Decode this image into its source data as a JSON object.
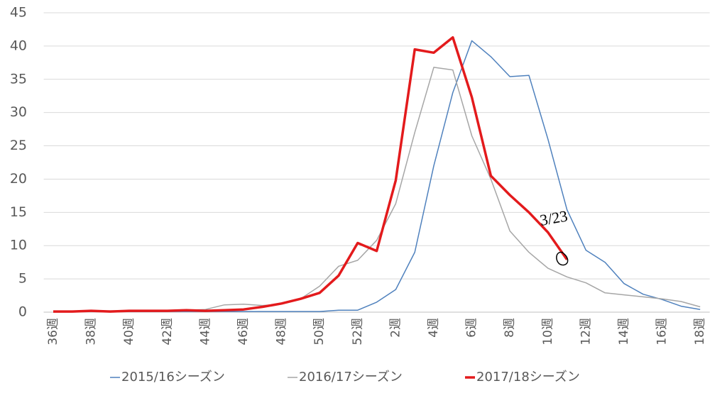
{
  "chart_data": {
    "type": "line",
    "categories": [
      "36週",
      null,
      "38週",
      null,
      "40週",
      null,
      "42週",
      null,
      "44週",
      null,
      "46週",
      null,
      "48週",
      null,
      "50週",
      null,
      "52週",
      null,
      "2週",
      null,
      "4週",
      null,
      "6週",
      null,
      "8週",
      null,
      "10週",
      null,
      "12週",
      null,
      "14週",
      null,
      "16週",
      null,
      "18週"
    ],
    "series": [
      {
        "name": "2015/16シーズン",
        "color": "#4f81bd",
        "width": 1.5,
        "values": [
          0.1,
          0.1,
          0.1,
          0.1,
          0.1,
          0.1,
          0.1,
          0.1,
          0.1,
          0.1,
          0.1,
          0.1,
          0.1,
          0.1,
          0.1,
          0.3,
          0.3,
          1.5,
          3.4,
          9.0,
          22,
          33,
          40.8,
          38.4,
          35.4,
          35.6,
          26,
          15.4,
          9.3,
          7.5,
          4.3,
          2.7,
          1.9,
          0.9,
          0.4
        ]
      },
      {
        "name": "2016/17シーズン",
        "color": "#a6a6a6",
        "width": 1.5,
        "values": [
          0.1,
          0.1,
          0.1,
          0.2,
          0.2,
          0.2,
          0.2,
          0.3,
          0.4,
          1.1,
          1.2,
          1.0,
          1.2,
          2.0,
          3.9,
          6.9,
          7.8,
          10.8,
          16.3,
          27,
          36.8,
          36.4,
          26.5,
          20.0,
          12.2,
          9.0,
          6.6,
          5.3,
          4.4,
          2.9,
          2.6,
          2.3,
          2.0,
          1.6,
          0.8
        ]
      },
      {
        "name": "2017/18シーズン",
        "color": "#e31a1c",
        "width": 3.5,
        "values": [
          0.1,
          0.1,
          0.2,
          0.1,
          0.2,
          0.2,
          0.2,
          0.3,
          0.2,
          0.3,
          0.4,
          0.8,
          1.3,
          2.0,
          2.9,
          5.5,
          10.4,
          9.2,
          19.8,
          39.5,
          39.0,
          41.3,
          32.3,
          20.5,
          17.6,
          15.0,
          12.0,
          7.9,
          null,
          null,
          null,
          null,
          null,
          null,
          null
        ]
      }
    ],
    "annotation": "3/23",
    "ylim": [
      0,
      45
    ],
    "yticks": [
      0,
      5,
      10,
      15,
      20,
      25,
      30,
      35,
      40,
      45
    ],
    "grid": true,
    "legend": "bottom"
  }
}
